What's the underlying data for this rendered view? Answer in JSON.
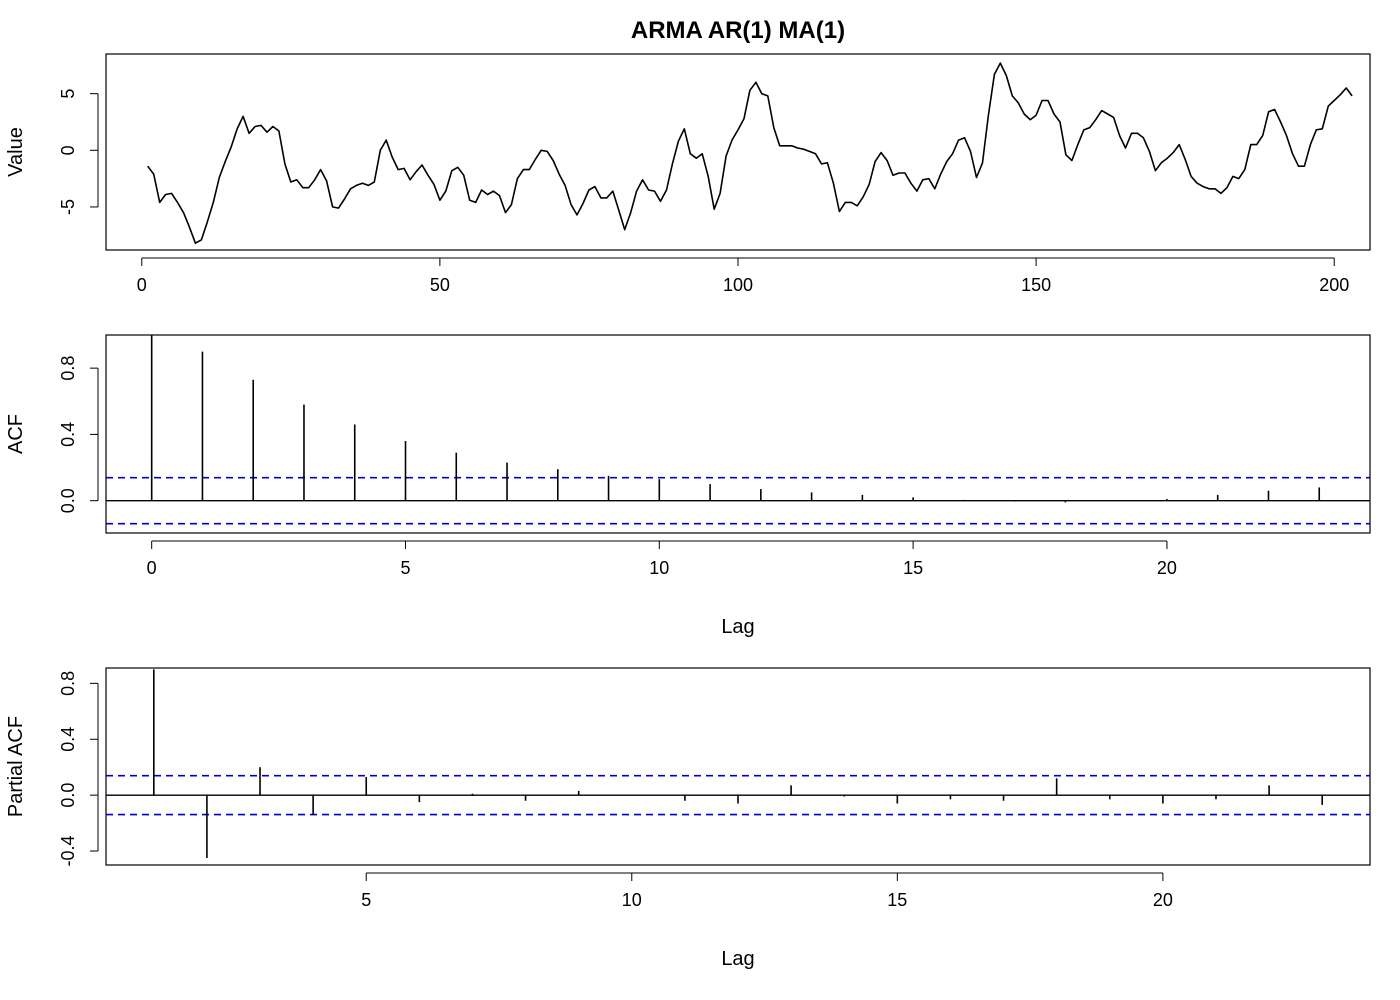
{
  "figure": {
    "title": "ARMA AR(1) MA(1)"
  },
  "chart_data": [
    {
      "type": "line",
      "ylabel": "Value",
      "xlabel": "",
      "xlim": [
        -6,
        206
      ],
      "ylim": [
        -8.8,
        8.5
      ],
      "xticks": [
        0,
        50,
        100,
        150,
        200
      ],
      "yticks": [
        -5,
        0,
        5
      ],
      "ytick_labels": [
        "-5",
        "0",
        "5"
      ],
      "x_start": 1,
      "series": [
        {
          "values": [
            -1.4,
            -2.1,
            -4.6,
            -3.9,
            -3.8,
            -4.6,
            -5.5,
            -6.8,
            -8.2,
            -7.9,
            -6.3,
            -4.6,
            -2.4,
            -1.0,
            0.3,
            1.9,
            3.0,
            1.5,
            2.1,
            2.2,
            1.6,
            2.1,
            1.7,
            -1.2,
            -2.8,
            -2.6,
            -3.3,
            -3.3,
            -2.6,
            -1.7,
            -2.7,
            -5.0,
            -5.1,
            -4.3,
            -3.4,
            -3.1,
            -2.9,
            -3.1,
            -2.8,
            0.0,
            0.9,
            -0.6,
            -1.7,
            -1.6,
            -2.6,
            -1.9,
            -1.3,
            -2.2,
            -3.0,
            -4.4,
            -3.6,
            -1.8,
            -1.5,
            -2.2,
            -4.4,
            -4.6,
            -3.5,
            -3.9,
            -3.6,
            -4.0,
            -5.5,
            -4.8,
            -2.5,
            -1.7,
            -1.7,
            -0.8,
            0.0,
            -0.1,
            -0.9,
            -2.1,
            -3.1,
            -4.8,
            -5.7,
            -4.7,
            -3.5,
            -3.2,
            -4.2,
            -4.2,
            -3.6,
            -5.3,
            -7.0,
            -5.5,
            -3.6,
            -2.6,
            -3.5,
            -3.6,
            -4.5,
            -3.5,
            -1.2,
            0.8,
            1.9,
            -0.3,
            -0.7,
            -0.3,
            -2.3,
            -5.2,
            -3.8,
            -0.5,
            0.9,
            1.8,
            2.8,
            5.3,
            6.0,
            5.0,
            4.8,
            2.0,
            0.4,
            0.4,
            0.4,
            0.2,
            0.1,
            -0.1,
            -0.3,
            -1.2,
            -1.1,
            -2.9,
            -5.4,
            -4.6,
            -4.6,
            -4.9,
            -4.1,
            -3.0,
            -1.0,
            -0.2,
            -0.9,
            -2.2,
            -2.0,
            -2.0,
            -2.9,
            -3.6,
            -2.6,
            -2.5,
            -3.4,
            -2.1,
            -1.0,
            -0.3,
            0.9,
            1.1,
            -0.1,
            -2.4,
            -1.1,
            3.1,
            6.7,
            7.7,
            6.6,
            4.8,
            4.2,
            3.2,
            2.7,
            3.1,
            4.4,
            4.4,
            3.2,
            2.5,
            -0.4,
            -0.9,
            0.5,
            1.8,
            2.0,
            2.7,
            3.5,
            3.2,
            2.9,
            1.3,
            0.2,
            1.5,
            1.5,
            1.1,
            -0.1,
            -1.8,
            -1.1,
            -0.7,
            -0.2,
            0.5,
            -0.8,
            -2.3,
            -2.9,
            -3.2,
            -3.4,
            -3.4,
            -3.8,
            -3.3,
            -2.3,
            -2.5,
            -1.7,
            0.5,
            0.5,
            1.3,
            3.4,
            3.6,
            2.5,
            1.3,
            -0.3,
            -1.4,
            -1.4,
            0.5,
            1.8,
            1.9,
            3.9,
            4.4,
            4.9,
            5.5,
            4.8
          ]
        }
      ]
    },
    {
      "type": "bar",
      "ylabel": "ACF",
      "xlabel": "Lag",
      "xlim": [
        -0.9,
        24
      ],
      "ylim": [
        -0.195,
        1.0
      ],
      "xticks": [
        0,
        5,
        10,
        15,
        20
      ],
      "yticks": [
        0.0,
        0.4,
        0.8
      ],
      "ytick_labels": [
        "0.0",
        "0.4",
        "0.8"
      ],
      "conf_limit": 0.139,
      "x": [
        0,
        1,
        2,
        3,
        4,
        5,
        6,
        7,
        8,
        9,
        10,
        11,
        12,
        13,
        14,
        15,
        16,
        17,
        18,
        19,
        20,
        21,
        22,
        23
      ],
      "values": [
        1.0,
        0.9,
        0.73,
        0.58,
        0.46,
        0.36,
        0.29,
        0.23,
        0.19,
        0.15,
        0.13,
        0.1,
        0.07,
        0.05,
        0.035,
        0.02,
        0.005,
        -0.005,
        -0.01,
        0.0,
        0.01,
        0.035,
        0.06,
        0.08
      ]
    },
    {
      "type": "bar",
      "ylabel": "Partial ACF",
      "xlabel": "Lag",
      "xlim": [
        0.1,
        23.9
      ],
      "ylim": [
        -0.5,
        0.91
      ],
      "xticks": [
        5,
        10,
        15,
        20
      ],
      "yticks": [
        -0.4,
        0.0,
        0.4,
        0.8
      ],
      "ytick_labels": [
        "-0.4",
        "0.0",
        "0.4",
        "0.8"
      ],
      "conf_limit": 0.139,
      "x": [
        1,
        2,
        3,
        4,
        5,
        6,
        7,
        8,
        9,
        10,
        11,
        12,
        13,
        14,
        15,
        16,
        17,
        18,
        19,
        20,
        21,
        22,
        23
      ],
      "values": [
        0.9,
        -0.45,
        0.2,
        -0.14,
        0.13,
        -0.05,
        0.01,
        -0.04,
        0.03,
        0.0,
        -0.04,
        -0.06,
        0.07,
        -0.01,
        -0.06,
        -0.03,
        -0.04,
        0.12,
        -0.03,
        -0.06,
        -0.03,
        0.07,
        -0.07
      ]
    }
  ]
}
